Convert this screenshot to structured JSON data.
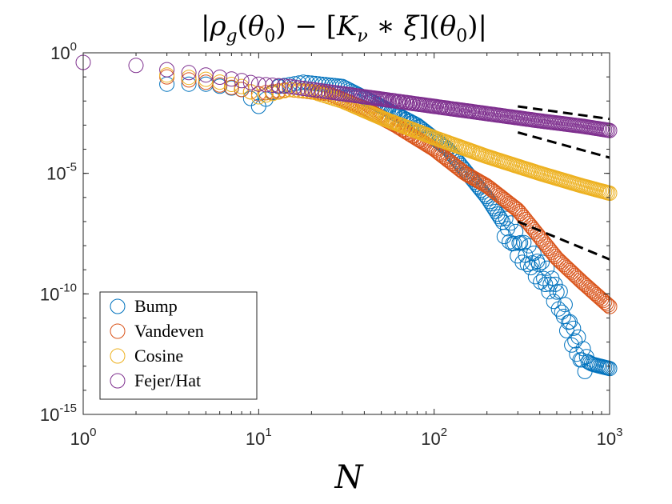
{
  "chart_data": {
    "type": "scatter",
    "title": "|ρ_g(θ_0) − [K_ν ∗ ξ](θ_0)|",
    "xlabel": "N",
    "ylabel": "",
    "xscale": "log",
    "yscale": "log",
    "xlim": [
      1,
      1000
    ],
    "ylim": [
      1e-15,
      1
    ],
    "xticks": [
      {
        "value": 1,
        "base": "10",
        "exp": "0"
      },
      {
        "value": 10,
        "base": "10",
        "exp": "1"
      },
      {
        "value": 100,
        "base": "10",
        "exp": "2"
      },
      {
        "value": 1000,
        "base": "10",
        "exp": "3"
      }
    ],
    "yticks": [
      {
        "value": 1,
        "base": "10",
        "exp": "0"
      },
      {
        "value": 1e-05,
        "base": "10",
        "exp": "-5"
      },
      {
        "value": 1e-10,
        "base": "10",
        "exp": "-10"
      },
      {
        "value": 1e-15,
        "base": "10",
        "exp": "-15"
      }
    ],
    "legend_position": "bottom-left",
    "series": [
      {
        "name": "Bump",
        "color": "#0072BD",
        "marker": "open-circle",
        "trend_points": [
          [
            3,
            0.05
          ],
          [
            5,
            0.05
          ],
          [
            8,
            0.03
          ],
          [
            10,
            0.006
          ],
          [
            13,
            0.04
          ],
          [
            18,
            0.06
          ],
          [
            30,
            0.04
          ],
          [
            50,
            0.006
          ],
          [
            80,
            0.001
          ],
          [
            120,
            0.0001
          ],
          [
            200,
            1e-06
          ],
          [
            300,
            1e-08
          ],
          [
            400,
            1e-09
          ],
          [
            500,
            1e-10
          ],
          [
            600,
            3e-12
          ],
          [
            700,
            2e-13
          ],
          [
            800,
            1.2e-13
          ],
          [
            1000,
            8e-14
          ]
        ]
      },
      {
        "name": "Vandeven",
        "color": "#D95319",
        "marker": "open-circle",
        "trend_points": [
          [
            3,
            0.1
          ],
          [
            5,
            0.06
          ],
          [
            8,
            0.03
          ],
          [
            10,
            0.02
          ],
          [
            15,
            0.03
          ],
          [
            25,
            0.02
          ],
          [
            40,
            0.005
          ],
          [
            60,
            0.001
          ],
          [
            100,
            0.0001
          ],
          [
            150,
            1e-05
          ],
          [
            200,
            3e-06
          ],
          [
            300,
            3e-07
          ],
          [
            500,
            3e-09
          ],
          [
            700,
            3e-10
          ],
          [
            1000,
            3e-11
          ]
        ]
      },
      {
        "name": "Cosine",
        "color": "#EDB120",
        "marker": "open-circle",
        "trend_points": [
          [
            3,
            0.12
          ],
          [
            5,
            0.08
          ],
          [
            8,
            0.04
          ],
          [
            10,
            0.015
          ],
          [
            15,
            0.03
          ],
          [
            20,
            0.025
          ],
          [
            30,
            0.01
          ],
          [
            50,
            0.002
          ],
          [
            100,
            0.0003
          ],
          [
            200,
            5e-05
          ],
          [
            400,
            1e-05
          ],
          [
            700,
            3e-06
          ],
          [
            1000,
            1.5e-06
          ]
        ]
      },
      {
        "name": "Fejer/Hat",
        "color": "#7E2F8E",
        "marker": "open-circle",
        "trend_points": [
          [
            1,
            0.4
          ],
          [
            2,
            0.3
          ],
          [
            3,
            0.2
          ],
          [
            5,
            0.12
          ],
          [
            8,
            0.07
          ],
          [
            10,
            0.05
          ],
          [
            15,
            0.04
          ],
          [
            30,
            0.02
          ],
          [
            50,
            0.012
          ],
          [
            100,
            0.006
          ],
          [
            200,
            0.003
          ],
          [
            400,
            0.0015
          ],
          [
            700,
            0.0009
          ],
          [
            1000,
            0.0006
          ]
        ]
      }
    ],
    "reference_lines": [
      {
        "x": [
          300,
          1000
        ],
        "y": [
          0.006,
          0.0018
        ],
        "style": "dashed"
      },
      {
        "x": [
          300,
          1000
        ],
        "y": [
          0.0005,
          4.5e-05
        ],
        "style": "dashed"
      },
      {
        "x": [
          300,
          1000
        ],
        "y": [
          1e-07,
          2.7e-09
        ],
        "style": "dashed"
      }
    ]
  }
}
